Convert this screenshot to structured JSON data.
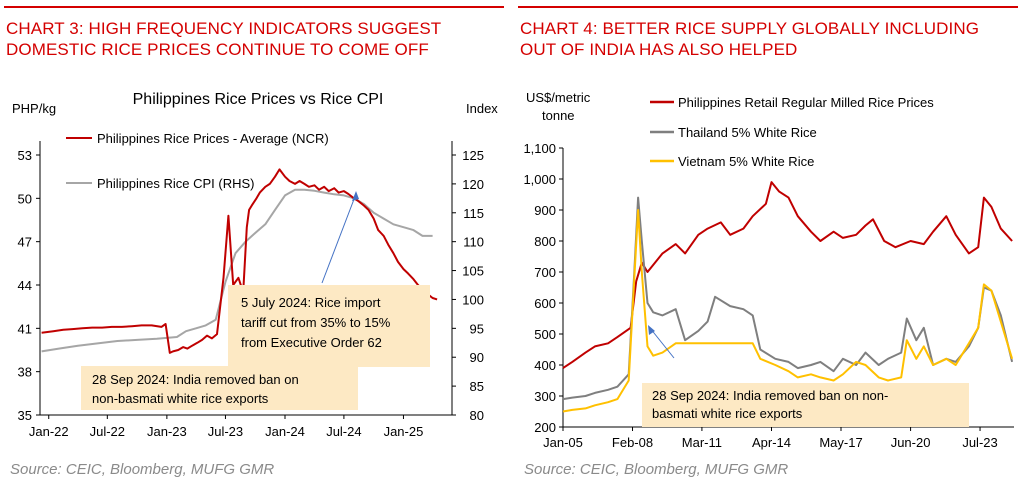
{
  "chart3": {
    "header": "CHART 3: HIGH FREQUENCY INDICATORS SUGGEST DOMESTIC RICE PRICES CONTINUE TO COME OFF",
    "title": "Philippines Rice Prices vs Rice CPI",
    "y_left_unit": "PHP/kg",
    "y_right_unit": "Index",
    "source": "Source: CEIC, Bloomberg, MUFG GMR",
    "annotation_1": [
      "5 July 2024: Rice import",
      "tariff cut from 35% to 15%",
      "from Executive Order 62"
    ],
    "annotation_2": [
      "28 Sep 2024: India removed ban on",
      "non-basmati white rice exports"
    ],
    "colors": {
      "series1": "#c00000",
      "series2": "#a6a6a6",
      "annotation_bg": "#fde9c4",
      "arrow": "#4472c4"
    }
  },
  "chart4": {
    "header": "CHART 4: BETTER RICE SUPPLY GLOBALLY INCLUDING OUT OF INDIA HAS ALSO HELPED",
    "y_unit": [
      "US$/metric",
      "tonne"
    ],
    "source": "Source: CEIC, Bloomberg, MUFG GMR",
    "annotation": [
      "28 Sep 2024: India removed ban on non-",
      "basmati white rice exports"
    ],
    "colors": {
      "series1": "#c00000",
      "series2": "#7f7f7f",
      "series3": "#ffc000",
      "annotation_bg": "#fde9c4",
      "arrow": "#4472c4"
    }
  },
  "chart_data": [
    {
      "type": "line",
      "title": "Philippines Rice Prices vs Rice CPI",
      "xlabel": "",
      "ylabel": "PHP/kg",
      "y2label": "Index",
      "x_ticks": [
        "Jan-22",
        "Jul-22",
        "Jan-23",
        "Jul-23",
        "Jan-24",
        "Jul-24",
        "Jan-25"
      ],
      "ylim": [
        35,
        53
      ],
      "y_ticks": [
        35,
        38,
        41,
        44,
        47,
        50,
        53
      ],
      "y2lim": [
        80,
        125
      ],
      "y2_ticks": [
        80,
        85,
        90,
        95,
        100,
        105,
        110,
        115,
        120,
        125
      ],
      "grid": false,
      "legend": "top-left",
      "series": [
        {
          "name": "Philippines Rice Prices - Average (NCR)",
          "axis": "left",
          "x": [
            "2021-12-10",
            "2022-01-15",
            "2022-02-15",
            "2022-03-15",
            "2022-04-15",
            "2022-05-15",
            "2022-06-15",
            "2022-07-15",
            "2022-08-15",
            "2022-09-15",
            "2022-10-15",
            "2022-11-15",
            "2022-12-15",
            "2022-12-28",
            "2023-01-10",
            "2023-01-20",
            "2023-02-05",
            "2023-02-20",
            "2023-03-05",
            "2023-03-20",
            "2023-04-05",
            "2023-04-20",
            "2023-05-05",
            "2023-05-20",
            "2023-06-05",
            "2023-06-25",
            "2023-07-10",
            "2023-07-25",
            "2023-08-10",
            "2023-08-25",
            "2023-09-05",
            "2023-09-12",
            "2023-09-20",
            "2023-10-05",
            "2023-10-15",
            "2023-11-01",
            "2023-11-15",
            "2023-12-01",
            "2023-12-15",
            "2024-01-01",
            "2024-01-15",
            "2024-02-01",
            "2024-02-15",
            "2024-03-01",
            "2024-03-15",
            "2024-04-01",
            "2024-04-15",
            "2024-05-01",
            "2024-05-15",
            "2024-06-01",
            "2024-06-15",
            "2024-07-01",
            "2024-07-15",
            "2024-08-01",
            "2024-08-15",
            "2024-09-01",
            "2024-09-15",
            "2024-10-01",
            "2024-10-15",
            "2024-11-01",
            "2024-11-15",
            "2024-12-01",
            "2024-12-15",
            "2025-01-01",
            "2025-01-15",
            "2025-02-01",
            "2025-02-15",
            "2025-03-01",
            "2025-03-15",
            "2025-04-01",
            "2025-04-15"
          ],
          "values": [
            40.7,
            40.8,
            40.9,
            40.95,
            41.0,
            41.05,
            41.05,
            41.1,
            41.1,
            41.15,
            41.2,
            41.2,
            41.1,
            41.3,
            39.3,
            39.4,
            39.5,
            39.7,
            39.6,
            39.8,
            40.0,
            40.2,
            40.5,
            40.3,
            40.6,
            44.5,
            48.8,
            44.0,
            44.5,
            43.5,
            48.0,
            49.2,
            49.5,
            50.0,
            50.4,
            50.8,
            51.0,
            51.5,
            52.0,
            51.5,
            51.2,
            51.0,
            51.2,
            51.0,
            50.8,
            50.9,
            50.6,
            50.8,
            50.5,
            50.7,
            50.4,
            50.5,
            50.3,
            50.0,
            49.8,
            49.5,
            49.2,
            48.6,
            47.8,
            47.4,
            46.8,
            46.2,
            45.6,
            45.1,
            44.8,
            44.4,
            44.0,
            43.7,
            43.4,
            43.1,
            43.0
          ]
        },
        {
          "name": "Philippines Rice CPI (RHS)",
          "axis": "right",
          "x": [
            "2021-12-10",
            "2022-02-01",
            "2022-04-01",
            "2022-06-01",
            "2022-08-01",
            "2022-10-01",
            "2022-12-01",
            "2023-02-01",
            "2023-03-01",
            "2023-04-01",
            "2023-05-01",
            "2023-06-01",
            "2023-07-01",
            "2023-08-01",
            "2023-09-01",
            "2023-10-01",
            "2023-11-01",
            "2023-12-01",
            "2024-01-01",
            "2024-02-01",
            "2024-03-01",
            "2024-04-01",
            "2024-05-01",
            "2024-06-01",
            "2024-07-01",
            "2024-08-01",
            "2024-09-01",
            "2024-10-01",
            "2024-11-01",
            "2024-12-01",
            "2025-01-01",
            "2025-02-01",
            "2025-03-01",
            "2025-04-01"
          ],
          "values": [
            91.0,
            91.5,
            92.0,
            92.4,
            92.8,
            93.0,
            93.2,
            93.5,
            94.5,
            95.0,
            95.5,
            96.5,
            103.0,
            108.0,
            110.0,
            111.5,
            113.0,
            115.5,
            118.0,
            119.0,
            119.0,
            118.8,
            118.5,
            118.2,
            118.0,
            117.5,
            116.5,
            115.0,
            114.0,
            113.0,
            112.5,
            112.0,
            111.0,
            111.0
          ]
        }
      ]
    },
    {
      "type": "line",
      "title": "",
      "xlabel": "",
      "ylabel": "US$/metric tonne",
      "x_ticks": [
        "Jan-05",
        "Feb-08",
        "Mar-11",
        "Apr-14",
        "May-17",
        "Jun-20",
        "Jul-23"
      ],
      "ylim": [
        200,
        1100
      ],
      "y_ticks": [
        200,
        300,
        400,
        500,
        600,
        700,
        800,
        900,
        1000,
        1100
      ],
      "grid": false,
      "legend": "top",
      "series": [
        {
          "name": "Philippines Retail Regular Milled Rice Prices",
          "x": [
            "2005-01",
            "2005-06",
            "2006-01",
            "2006-06",
            "2007-01",
            "2007-06",
            "2008-01",
            "2008-04",
            "2008-07",
            "2008-10",
            "2009-06",
            "2010-01",
            "2010-06",
            "2011-01",
            "2011-06",
            "2012-01",
            "2012-06",
            "2013-01",
            "2013-06",
            "2014-01",
            "2014-04",
            "2014-08",
            "2015-01",
            "2015-06",
            "2016-01",
            "2016-06",
            "2017-01",
            "2017-06",
            "2018-01",
            "2018-06",
            "2018-10",
            "2019-04",
            "2019-10",
            "2020-06",
            "2021-01",
            "2021-06",
            "2022-01",
            "2022-06",
            "2023-01",
            "2023-06",
            "2023-09",
            "2024-01",
            "2024-06",
            "2024-12"
          ],
          "values": [
            390,
            410,
            440,
            460,
            470,
            490,
            520,
            670,
            730,
            700,
            760,
            790,
            760,
            820,
            840,
            860,
            820,
            840,
            880,
            920,
            990,
            960,
            940,
            880,
            830,
            800,
            830,
            810,
            820,
            850,
            870,
            800,
            780,
            800,
            790,
            830,
            880,
            820,
            760,
            780,
            940,
            910,
            840,
            800
          ]
        },
        {
          "name": "Thailand 5% White Rice",
          "x": [
            "2005-01",
            "2005-06",
            "2006-01",
            "2006-06",
            "2007-01",
            "2007-06",
            "2007-12",
            "2008-03",
            "2008-05",
            "2008-07",
            "2008-10",
            "2009-01",
            "2009-06",
            "2010-01",
            "2010-06",
            "2011-01",
            "2011-06",
            "2011-10",
            "2012-06",
            "2013-01",
            "2013-06",
            "2013-10",
            "2014-06",
            "2015-01",
            "2015-06",
            "2016-01",
            "2016-06",
            "2017-01",
            "2017-06",
            "2018-01",
            "2018-06",
            "2019-01",
            "2019-06",
            "2020-01",
            "2020-04",
            "2020-09",
            "2021-01",
            "2021-06",
            "2022-01",
            "2022-06",
            "2023-01",
            "2023-06",
            "2023-09",
            "2024-01",
            "2024-06",
            "2024-12"
          ],
          "values": [
            290,
            295,
            300,
            310,
            320,
            330,
            370,
            700,
            940,
            800,
            600,
            570,
            560,
            580,
            480,
            510,
            540,
            620,
            590,
            580,
            560,
            450,
            420,
            410,
            390,
            400,
            410,
            380,
            420,
            400,
            440,
            400,
            420,
            440,
            550,
            480,
            520,
            400,
            420,
            410,
            460,
            520,
            650,
            640,
            560,
            410
          ]
        },
        {
          "name": "Vietnam 5% White Rice",
          "x": [
            "2005-01",
            "2005-06",
            "2006-01",
            "2006-06",
            "2007-01",
            "2007-06",
            "2007-12",
            "2008-03",
            "2008-05",
            "2008-07",
            "2008-10",
            "2009-01",
            "2009-06",
            "2010-01",
            "2010-06",
            "2011-01",
            "2011-06",
            "2011-10",
            "2012-06",
            "2013-01",
            "2013-06",
            "2013-10",
            "2014-06",
            "2015-01",
            "2015-06",
            "2016-01",
            "2016-06",
            "2017-01",
            "2017-06",
            "2018-01",
            "2018-06",
            "2019-01",
            "2019-06",
            "2020-01",
            "2020-04",
            "2020-09",
            "2021-01",
            "2021-06",
            "2022-01",
            "2022-06",
            "2023-01",
            "2023-06",
            "2023-09",
            "2024-01",
            "2024-06",
            "2024-12"
          ],
          "values": [
            250,
            255,
            260,
            270,
            280,
            290,
            350,
            680,
            900,
            700,
            460,
            430,
            440,
            470,
            470,
            470,
            470,
            470,
            470,
            470,
            470,
            420,
            400,
            380,
            360,
            370,
            360,
            350,
            370,
            410,
            400,
            360,
            350,
            360,
            480,
            420,
            460,
            400,
            420,
            400,
            470,
            520,
            660,
            640,
            540,
            420
          ]
        }
      ]
    }
  ]
}
